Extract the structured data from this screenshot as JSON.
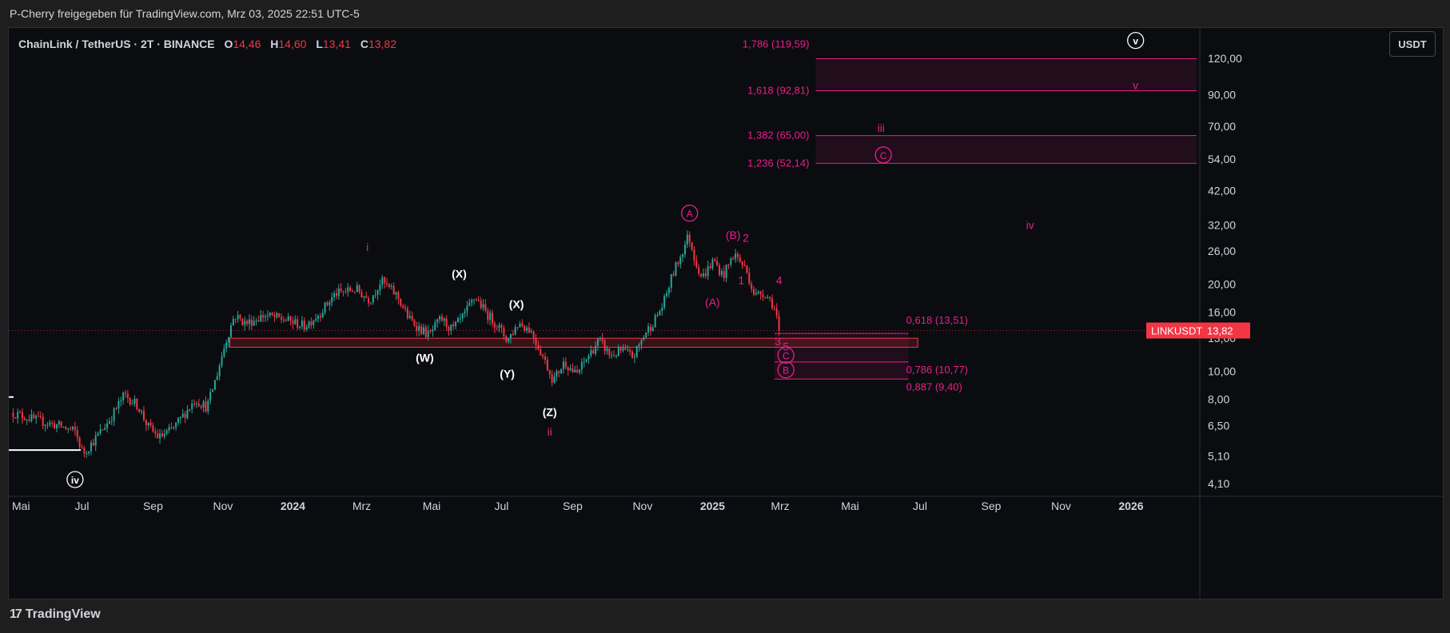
{
  "header": {
    "publisher_line": "P-Cherry freigegeben für TradingView.com, Mrz 03, 2025 22:51 UTC-5"
  },
  "legend": {
    "title": "ChainLink / TetherUS · 2T · BINANCE",
    "o_label": "O",
    "o_value": "14,46",
    "h_label": "H",
    "h_value": "14,60",
    "l_label": "L",
    "l_value": "13,41",
    "c_label": "C",
    "c_value": "13,82"
  },
  "currency_button": "USDT",
  "footer": {
    "brand": "TradingView",
    "logo_glyph": "17"
  },
  "colors": {
    "up": "#26a69a",
    "down": "#f23645",
    "magenta": "#e91e8c",
    "background": "#0b0c0f"
  },
  "chart_data": {
    "type": "candlestick",
    "symbol": "LINKUSDT",
    "last_price_label": "13,82",
    "price_scale": "log",
    "y_ticks": [
      "120,00",
      "90,00",
      "70,00",
      "54,00",
      "42,00",
      "32,00",
      "26,00",
      "20,00",
      "16,00",
      "13,00",
      "10,00",
      "8,00",
      "6,50",
      "5,10",
      "4,10"
    ],
    "y_tick_values": [
      120,
      90,
      70,
      54,
      42,
      32,
      26,
      20,
      16,
      13,
      10,
      8,
      6.5,
      5.1,
      4.1
    ],
    "x_ticks": [
      {
        "label": "Mai",
        "t": 0,
        "bold": false
      },
      {
        "label": "Jul",
        "t": 61,
        "bold": false
      },
      {
        "label": "Sep",
        "t": 123,
        "bold": false
      },
      {
        "label": "Nov",
        "t": 184,
        "bold": false
      },
      {
        "label": "2024",
        "t": 245,
        "bold": true
      },
      {
        "label": "Mrz",
        "t": 305,
        "bold": false
      },
      {
        "label": "Mai",
        "t": 366,
        "bold": false
      },
      {
        "label": "Jul",
        "t": 427,
        "bold": false
      },
      {
        "label": "Sep",
        "t": 489,
        "bold": false
      },
      {
        "label": "Nov",
        "t": 550,
        "bold": false
      },
      {
        "label": "2025",
        "t": 611,
        "bold": true
      },
      {
        "label": "Mrz",
        "t": 670,
        "bold": false
      },
      {
        "label": "Mai",
        "t": 731,
        "bold": false
      },
      {
        "label": "Jul",
        "t": 792,
        "bold": false
      },
      {
        "label": "Sep",
        "t": 854,
        "bold": false
      },
      {
        "label": "Nov",
        "t": 915,
        "bold": false
      },
      {
        "label": "2026",
        "t": 976,
        "bold": true
      }
    ],
    "price_path": [
      [
        0,
        7.2
      ],
      [
        20,
        6.8
      ],
      [
        40,
        6.5
      ],
      [
        55,
        6.2
      ],
      [
        62,
        5.2
      ],
      [
        72,
        5.8
      ],
      [
        85,
        6.8
      ],
      [
        98,
        8.3
      ],
      [
        110,
        7.6
      ],
      [
        118,
        6.5
      ],
      [
        128,
        5.9
      ],
      [
        140,
        6.3
      ],
      [
        150,
        7.1
      ],
      [
        160,
        8.0
      ],
      [
        170,
        7.5
      ],
      [
        178,
        9.5
      ],
      [
        186,
        12.5
      ],
      [
        194,
        15.6
      ],
      [
        204,
        14.6
      ],
      [
        220,
        15.6
      ],
      [
        240,
        15.0
      ],
      [
        255,
        14.3
      ],
      [
        268,
        15.8
      ],
      [
        282,
        18.5
      ],
      [
        300,
        19.2
      ],
      [
        312,
        17.6
      ],
      [
        322,
        20.5
      ],
      [
        336,
        18.2
      ],
      [
        346,
        15.2
      ],
      [
        356,
        14.0
      ],
      [
        364,
        13.3
      ],
      [
        374,
        15.2
      ],
      [
        384,
        13.9
      ],
      [
        394,
        15.5
      ],
      [
        404,
        18.1
      ],
      [
        414,
        15.8
      ],
      [
        424,
        14.3
      ],
      [
        432,
        12.8
      ],
      [
        442,
        14.7
      ],
      [
        452,
        13.9
      ],
      [
        462,
        11.5
      ],
      [
        472,
        9.3
      ],
      [
        482,
        10.8
      ],
      [
        492,
        9.7
      ],
      [
        502,
        11.2
      ],
      [
        512,
        12.8
      ],
      [
        522,
        11.3
      ],
      [
        532,
        11.8
      ],
      [
        542,
        11.2
      ],
      [
        552,
        13.5
      ],
      [
        560,
        14.9
      ],
      [
        568,
        17.0
      ],
      [
        576,
        21.5
      ],
      [
        584,
        25.5
      ],
      [
        590,
        29.5
      ],
      [
        596,
        24.0
      ],
      [
        602,
        21.0
      ],
      [
        612,
        24.2
      ],
      [
        620,
        21.3
      ],
      [
        630,
        25.5
      ],
      [
        640,
        22.5
      ],
      [
        648,
        18.2
      ],
      [
        656,
        18.8
      ],
      [
        664,
        17.0
      ],
      [
        670,
        13.82
      ]
    ],
    "fib_levels": [
      {
        "label": "1,786 (119,59)",
        "value": 119.59
      },
      {
        "label": "1,618 (92,81)",
        "value": 92.81
      },
      {
        "label": "1,382 (65,00)",
        "value": 65.0
      },
      {
        "label": "1,236 (52,14)",
        "value": 52.14
      },
      {
        "label": "0,618 (13,51)",
        "value": 13.51
      },
      {
        "label": "0,786 (10,77)",
        "value": 10.77
      },
      {
        "label": "0,887 (9,40)",
        "value": 9.4
      }
    ],
    "support_zone": {
      "from": 12.1,
      "to": 13.0
    },
    "wave_labels": [
      {
        "text": "iv",
        "t": 55,
        "p": 4.1,
        "color": "white",
        "circled": true
      },
      {
        "text": "i",
        "t": 310,
        "p": 26.0,
        "color": "magenta",
        "circled": false
      },
      {
        "text": "(X)",
        "t": 390,
        "p": 21.0,
        "color": "white",
        "circled": false
      },
      {
        "text": "(W)",
        "t": 360,
        "p": 10.8,
        "color": "white",
        "circled": false
      },
      {
        "text": "(X)",
        "t": 440,
        "p": 16.5,
        "color": "white",
        "circled": false
      },
      {
        "text": "(Y)",
        "t": 432,
        "p": 9.5,
        "color": "white",
        "circled": false
      },
      {
        "text": "(Z)",
        "t": 469,
        "p": 7.0,
        "color": "white",
        "circled": false
      },
      {
        "text": "ii",
        "t": 469,
        "p": 6.0,
        "color": "magenta",
        "circled": false
      },
      {
        "text": "A",
        "t": 591,
        "p": 34.0,
        "color": "magenta",
        "circled": true
      },
      {
        "text": "(B)",
        "t": 629,
        "p": 28.6,
        "color": "magenta",
        "circled": false
      },
      {
        "text": "2",
        "t": 640,
        "p": 28.0,
        "color": "magenta",
        "circled": false
      },
      {
        "text": "1",
        "t": 636,
        "p": 20.0,
        "color": "magenta",
        "circled": false
      },
      {
        "text": "(A)",
        "t": 611,
        "p": 16.8,
        "color": "magenta",
        "circled": false
      },
      {
        "text": "4",
        "t": 669,
        "p": 20.0,
        "color": "magenta",
        "circled": false
      },
      {
        "text": "3",
        "t": 668,
        "p": 12.3,
        "color": "magenta",
        "circled": false
      },
      {
        "text": "5",
        "t": 675,
        "p": 11.8,
        "color": "magenta",
        "circled": false
      },
      {
        "text": "C",
        "t": 675,
        "p": 11.0,
        "color": "magenta",
        "circled": true
      },
      {
        "text": "B",
        "t": 675,
        "p": 9.8,
        "color": "magenta",
        "circled": true
      },
      {
        "text": "iii",
        "t": 758,
        "p": 67.0,
        "color": "magenta",
        "circled": false
      },
      {
        "text": "C",
        "t": 760,
        "p": 54.0,
        "color": "magenta",
        "circled": true
      },
      {
        "text": "iv",
        "t": 888,
        "p": 31.0,
        "color": "magenta",
        "circled": false
      },
      {
        "text": "v",
        "t": 980,
        "p": 94.0,
        "color": "magenta",
        "circled": false
      },
      {
        "text": "v",
        "t": 980,
        "p": 134.0,
        "color": "white",
        "circled": true
      }
    ]
  }
}
